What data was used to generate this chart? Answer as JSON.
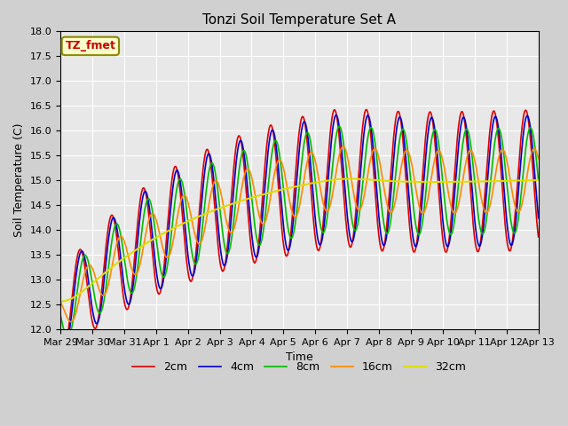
{
  "title": "Tonzi Soil Temperature Set A",
  "xlabel": "Time",
  "ylabel": "Soil Temperature (C)",
  "ylim": [
    12.0,
    18.0
  ],
  "yticks": [
    12.0,
    12.5,
    13.0,
    13.5,
    14.0,
    14.5,
    15.0,
    15.5,
    16.0,
    16.5,
    17.0,
    17.5,
    18.0
  ],
  "xtick_labels": [
    "Mar 29",
    "Mar 30",
    "Mar 31",
    "Apr 1",
    "Apr 2",
    "Apr 3",
    "Apr 4",
    "Apr 5",
    "Apr 6",
    "Apr 7",
    "Apr 8",
    "Apr 9",
    "Apr 10",
    "Apr 11",
    "Apr 12",
    "Apr 13"
  ],
  "series_colors": [
    "#dd0000",
    "#0000cc",
    "#00bb00",
    "#ff8800",
    "#dddd00"
  ],
  "series_labels": [
    "2cm",
    "4cm",
    "8cm",
    "16cm",
    "32cm"
  ],
  "legend_label": "TZ_fmet",
  "legend_box_facecolor": "#ffffcc",
  "legend_box_edgecolor": "#888800",
  "plot_bg_color": "#e8e8e8",
  "fig_bg_color": "#d0d0d0",
  "grid_color": "#ffffff",
  "title_fontsize": 11,
  "axis_label_fontsize": 9,
  "tick_fontsize": 8,
  "legend_fontsize": 9,
  "line_width": 1.2
}
